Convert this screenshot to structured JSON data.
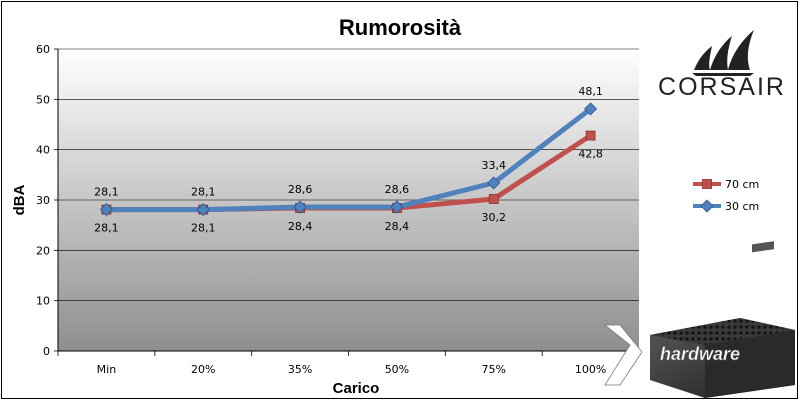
{
  "chart_data": {
    "type": "line",
    "title": "Rumorosità",
    "xlabel": "Carico",
    "ylabel": "dBA",
    "categories": [
      "Min",
      "20%",
      "35%",
      "50%",
      "75%",
      "100%"
    ],
    "ylim": [
      0,
      60
    ],
    "yticks": [
      "0",
      "10",
      "20",
      "30",
      "40",
      "50",
      "60"
    ],
    "grid": true,
    "legend_position": "right",
    "series": [
      {
        "name": "70 cm",
        "values": [
          28.1,
          28.1,
          28.4,
          28.4,
          30.2,
          42.8
        ],
        "labels": [
          "28,1",
          "28,1",
          "28,4",
          "28,4",
          "30,2",
          "42,8"
        ],
        "color": "#c0504d",
        "marker": "square"
      },
      {
        "name": "30 cm",
        "values": [
          28.1,
          28.1,
          28.6,
          28.6,
          33.4,
          48.1
        ],
        "labels": [
          "28,1",
          "28,1",
          "28,6",
          "28,6",
          "33,4",
          "48,1"
        ],
        "color": "#4f81bd",
        "marker": "diamond"
      }
    ]
  },
  "brand": {
    "name": "CORSAIR",
    "logo_icon": "corsair-sails-icon"
  },
  "watermark": {
    "text": "hardware",
    "icon": "nexthardware-logo-icon"
  },
  "product_image": {
    "icon": "power-supply-unit-icon"
  }
}
